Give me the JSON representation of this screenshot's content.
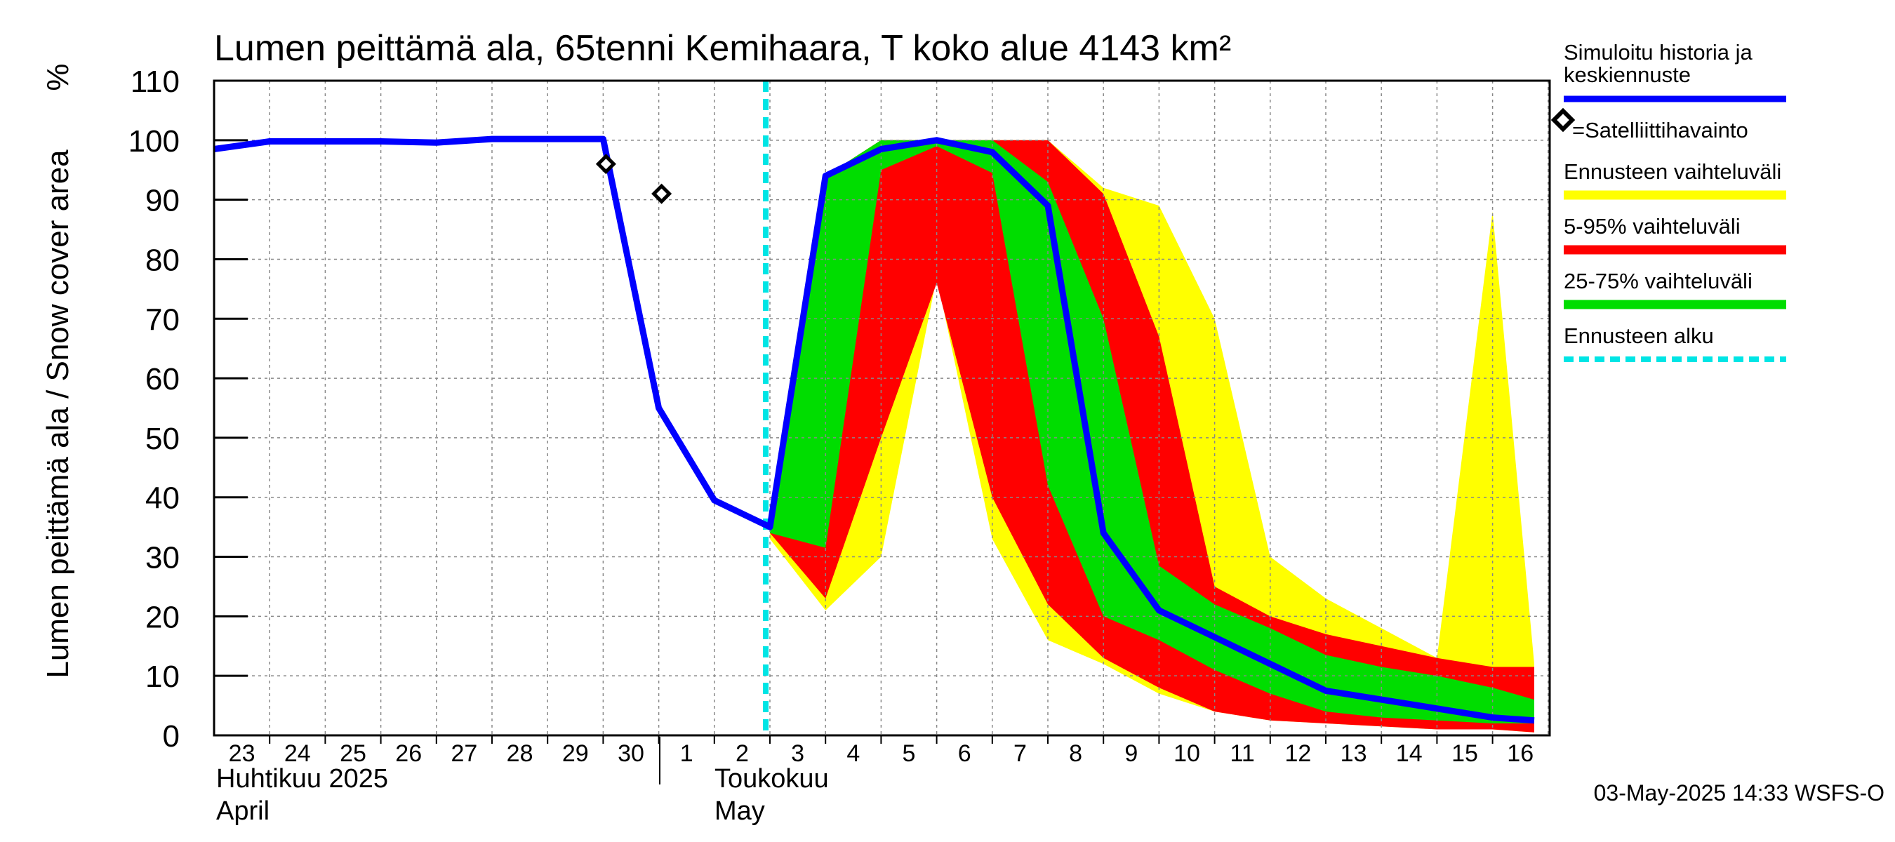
{
  "chart_data": {
    "type": "area",
    "title": "Lumen peittämä ala, 65tenni Kemihaara, T koko alue 4143 km²",
    "ylabel": "Lumen peittämä ala / Snow cover area",
    "yunit": "%",
    "ylim": [
      0,
      110
    ],
    "yticks": [
      0,
      10,
      20,
      30,
      40,
      50,
      60,
      70,
      80,
      90,
      100,
      110
    ],
    "grid": true,
    "x_day_labels": [
      "23",
      "24",
      "25",
      "26",
      "27",
      "28",
      "29",
      "30",
      "1",
      "2",
      "3",
      "4",
      "5",
      "6",
      "7",
      "8",
      "9",
      "10",
      "11",
      "12",
      "13",
      "14",
      "15",
      "16"
    ],
    "month_labels": [
      {
        "fi": "Huhtikuu  2025",
        "en": "April"
      },
      {
        "fi": "Toukokuu",
        "en": "May"
      }
    ],
    "forecast_start_index": 10,
    "series": [
      {
        "name": "Simuloitu historia ja keskiennuste",
        "color": "#0000ff",
        "x": [
          0,
          1,
          2,
          3,
          4,
          5,
          6,
          7,
          8,
          9,
          10,
          11,
          12,
          13,
          14,
          15,
          16,
          17,
          18,
          19,
          20,
          21,
          22,
          23,
          23.75
        ],
        "values": [
          98.5,
          99.8,
          99.8,
          99.8,
          99.6,
          100.2,
          100.2,
          100.2,
          55,
          39.5,
          35,
          94,
          98.5,
          100,
          98,
          89,
          34,
          21,
          16.5,
          12,
          7.5,
          6,
          4.5,
          3,
          2.5
        ]
      },
      {
        "name": "=Satelliittihavainto",
        "type": "scatter",
        "x": [
          7,
          8
        ],
        "values": [
          96,
          91
        ]
      }
    ],
    "bands": [
      {
        "name": "Ennusteen vaihteluväli",
        "color": "#ffff00",
        "x": [
          10,
          11,
          12,
          13,
          14,
          15,
          16,
          17,
          18,
          19,
          20,
          21,
          22,
          23,
          23.75
        ],
        "low": [
          33,
          21,
          30,
          77,
          33,
          16,
          12,
          7,
          4,
          2.5,
          2,
          1.5,
          1,
          1,
          0.5
        ],
        "high": [
          35,
          94,
          100,
          100,
          100,
          100,
          92,
          89,
          70,
          30,
          23,
          18,
          13,
          88,
          12
        ]
      },
      {
        "name": "5-95% vaihteluväli",
        "color": "#ff0000",
        "x": [
          10,
          11,
          12,
          13,
          14,
          15,
          16,
          17,
          18,
          19,
          20,
          21,
          22,
          23,
          23.75
        ],
        "low": [
          34,
          23,
          50,
          76,
          40,
          22,
          13,
          8,
          4,
          2.5,
          2,
          1.5,
          1,
          1,
          0.5
        ],
        "high": [
          35,
          94,
          100,
          100,
          100,
          100,
          91,
          67,
          25,
          20,
          17,
          15,
          13,
          11.5,
          11.5
        ]
      },
      {
        "name": "25-75% vaihteluväli",
        "color": "#00dd00",
        "x": [
          10,
          11,
          12,
          13,
          14,
          15,
          16,
          17,
          18,
          19,
          20,
          21,
          22,
          23,
          23.75
        ],
        "low": [
          34,
          31.5,
          95,
          99,
          94.5,
          42,
          20,
          16,
          11,
          7,
          4,
          3,
          2.5,
          2,
          2
        ],
        "high": [
          35,
          94,
          100,
          100,
          100,
          93,
          70,
          28.5,
          22,
          18,
          13.5,
          11.5,
          10,
          8,
          6
        ]
      }
    ],
    "forecast_start_label": "Ennusteen alku",
    "legend": {
      "placement": "right",
      "entries": [
        {
          "label_line1": "Simuloitu historia ja",
          "label_line2": "keskiennuste",
          "color": "#0000ff",
          "kind": "line"
        },
        {
          "label": "=Satelliittihavainto",
          "kind": "marker"
        },
        {
          "label": "Ennusteen vaihteluväli",
          "color": "#ffff00",
          "kind": "band"
        },
        {
          "label": "5-95% vaihteluväli",
          "color": "#ff0000",
          "kind": "band"
        },
        {
          "label": "25-75% vaihteluväli",
          "color": "#00dd00",
          "kind": "band"
        },
        {
          "label": "Ennusteen alku",
          "color": "#00e5e5",
          "kind": "dashed"
        }
      ]
    },
    "footer": "03-May-2025 14:33 WSFS-O"
  }
}
